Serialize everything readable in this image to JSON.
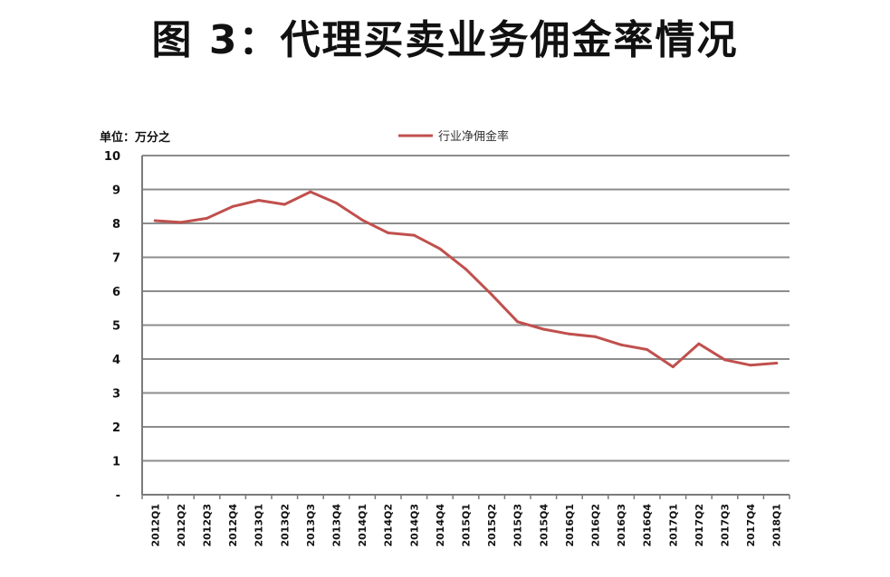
{
  "figure_title": "图 3：代理买卖业务佣金率情况",
  "chart_data": {
    "type": "line",
    "title": "图 3：代理买卖业务佣金率情况",
    "unit_label": "单位：万分之",
    "categories": [
      "2012Q1",
      "2012Q2",
      "2012Q3",
      "2012Q4",
      "2013Q1",
      "2013Q2",
      "2013Q3",
      "2013Q4",
      "2014Q1",
      "2014Q2",
      "2014Q3",
      "2014Q4",
      "2015Q1",
      "2015Q2",
      "2015Q3",
      "2015Q4",
      "2016Q1",
      "2016Q2",
      "2016Q3",
      "2016Q4",
      "2017Q1",
      "2017Q2",
      "2017Q3",
      "2017Q4",
      "2018Q1"
    ],
    "series": [
      {
        "name": "行业净佣金率",
        "color": "#c0504d",
        "values": [
          8.08,
          8.03,
          8.15,
          8.5,
          8.68,
          8.56,
          8.93,
          8.6,
          8.1,
          7.72,
          7.65,
          7.25,
          6.65,
          5.9,
          5.1,
          4.88,
          4.74,
          4.66,
          4.42,
          4.28,
          3.77,
          4.45,
          3.98,
          3.82,
          3.88
        ]
      }
    ],
    "y_tick_labels": [
      "-",
      "1",
      "2",
      "3",
      "4",
      "5",
      "6",
      "7",
      "8",
      "9",
      "10"
    ],
    "ylim": [
      0,
      10
    ],
    "grid": true,
    "legend_position": "top-center"
  }
}
